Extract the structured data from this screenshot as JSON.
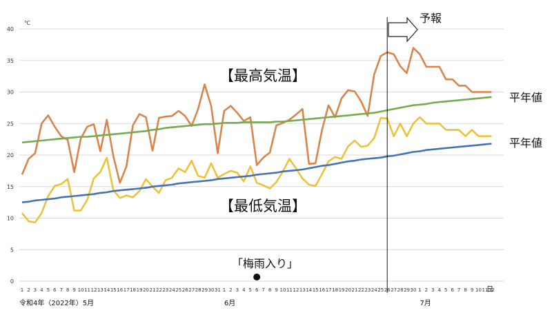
{
  "chart_data": {
    "type": "line",
    "unit": "℃",
    "ylim": [
      0,
      40
    ],
    "yticks": [
      "0",
      "5",
      "10",
      "15",
      "20",
      "25",
      "30",
      "35",
      "40"
    ],
    "grid": true,
    "x_day_labels": [
      "1",
      "2",
      "3",
      "4",
      "5",
      "6",
      "7",
      "8",
      "9",
      "10",
      "11",
      "12",
      "13",
      "14",
      "15",
      "16",
      "17",
      "18",
      "19",
      "20",
      "21",
      "22",
      "23",
      "24",
      "25",
      "26",
      "27",
      "28",
      "29",
      "30",
      "31",
      "1",
      "2",
      "3",
      "4",
      "5",
      "6",
      "7",
      "8",
      "9",
      "10",
      "11",
      "12",
      "13",
      "14",
      "15",
      "16",
      "17",
      "18",
      "19",
      "20",
      "21",
      "22",
      "23",
      "24",
      "25",
      "26",
      "27",
      "28",
      "29",
      "30",
      "1",
      "2",
      "3",
      "4",
      "5",
      "6",
      "7",
      "8",
      "9",
      "10",
      "11",
      "12"
    ],
    "x_unit": "日",
    "month_labels": [
      {
        "index": 0,
        "text": "令和4年（2022年）5月"
      },
      {
        "index": 31,
        "text": "6月"
      },
      {
        "index": 61,
        "text": "7月"
      }
    ],
    "forecast_start_index": 56,
    "forecast_label": "予報",
    "high_label": "【最高気温】",
    "low_label": "【最低気温】",
    "normal_label_high": "平年値",
    "normal_label_low": "平年値",
    "event": {
      "index": 36,
      "label": "「梅雨入り」"
    },
    "series": [
      {
        "key": "high",
        "color": "#d9844a",
        "values": [
          16.9,
          19.4,
          20.3,
          25.0,
          26.3,
          24.5,
          23.0,
          22.4,
          17.3,
          22.6,
          24.5,
          24.9,
          20.6,
          25.6,
          19.8,
          15.6,
          18.2,
          24.7,
          26.5,
          26.0,
          20.7,
          25.9,
          26.1,
          26.2,
          27.0,
          26.2,
          24.6,
          27.3,
          31.2,
          27.8,
          20.3,
          27.0,
          27.8,
          26.7,
          25.4,
          26.0,
          18.4,
          19.6,
          20.4,
          24.7,
          25.1,
          25.6,
          26.4,
          27.3,
          18.6,
          18.7,
          24.0,
          27.9,
          26.0,
          29.0,
          30.3,
          30.1,
          28.5,
          26.2,
          32.8,
          35.7,
          36.3,
          36.0,
          34.1,
          33.0,
          37.0,
          36.0,
          34.0,
          34.0,
          34.0,
          32.0,
          32.0,
          31.0,
          31.0,
          30.0,
          30.0,
          30.0,
          30.0
        ]
      },
      {
        "key": "high_normal",
        "color": "#74ab4f",
        "values": [
          22.0,
          22.1,
          22.2,
          22.3,
          22.4,
          22.5,
          22.6,
          22.7,
          22.8,
          22.9,
          22.9,
          23.0,
          23.1,
          23.2,
          23.3,
          23.4,
          23.5,
          23.6,
          23.7,
          23.8,
          24.0,
          24.1,
          24.3,
          24.4,
          24.5,
          24.6,
          24.7,
          24.8,
          24.9,
          24.9,
          25.0,
          25.1,
          25.1,
          25.1,
          25.2,
          25.2,
          25.2,
          25.2,
          25.2,
          25.3,
          25.3,
          25.4,
          25.5,
          25.6,
          25.7,
          25.8,
          25.9,
          26.0,
          26.1,
          26.2,
          26.3,
          26.4,
          26.5,
          26.6,
          26.7,
          26.9,
          27.1,
          27.3,
          27.5,
          27.7,
          27.9,
          28.0,
          28.1,
          28.3,
          28.4,
          28.5,
          28.6,
          28.7,
          28.8,
          28.9,
          29.0,
          29.1,
          29.2
        ]
      },
      {
        "key": "low",
        "color": "#ecc23a",
        "values": [
          10.8,
          9.5,
          9.3,
          10.8,
          13.5,
          15.1,
          15.4,
          16.2,
          11.2,
          11.2,
          12.9,
          16.3,
          17.3,
          19.6,
          14.4,
          13.2,
          13.6,
          13.3,
          14.3,
          16.2,
          15.0,
          14.0,
          16.0,
          16.4,
          17.9,
          17.3,
          19.1,
          16.7,
          16.4,
          18.7,
          16.4,
          17.0,
          17.5,
          17.2,
          15.8,
          18.2,
          15.6,
          15.2,
          14.7,
          15.7,
          17.4,
          19.4,
          17.9,
          16.3,
          15.3,
          15.1,
          17.0,
          19.0,
          19.7,
          19.4,
          21.4,
          22.3,
          21.3,
          21.5,
          22.7,
          25.9,
          25.8,
          23.0,
          25.0,
          23.0,
          25.0,
          26.0,
          25.0,
          25.0,
          25.0,
          24.0,
          24.0,
          24.0,
          23.0,
          24.0,
          23.0,
          23.0,
          23.0
        ]
      },
      {
        "key": "low_normal",
        "color": "#4472b5",
        "values": [
          12.5,
          12.6,
          12.8,
          12.9,
          13.0,
          13.1,
          13.3,
          13.4,
          13.5,
          13.6,
          13.7,
          13.8,
          14.0,
          14.1,
          14.3,
          14.4,
          14.5,
          14.6,
          14.7,
          14.8,
          15.0,
          15.1,
          15.2,
          15.3,
          15.5,
          15.6,
          15.7,
          15.8,
          15.9,
          16.0,
          16.2,
          16.3,
          16.4,
          16.5,
          16.6,
          16.7,
          16.9,
          17.0,
          17.1,
          17.2,
          17.4,
          17.5,
          17.6,
          17.7,
          17.9,
          18.1,
          18.3,
          18.4,
          18.6,
          18.8,
          19.0,
          19.1,
          19.3,
          19.4,
          19.5,
          19.6,
          19.8,
          19.9,
          20.1,
          20.3,
          20.5,
          20.6,
          20.8,
          20.9,
          21.0,
          21.1,
          21.2,
          21.3,
          21.4,
          21.5,
          21.6,
          21.7,
          21.8
        ]
      }
    ]
  }
}
